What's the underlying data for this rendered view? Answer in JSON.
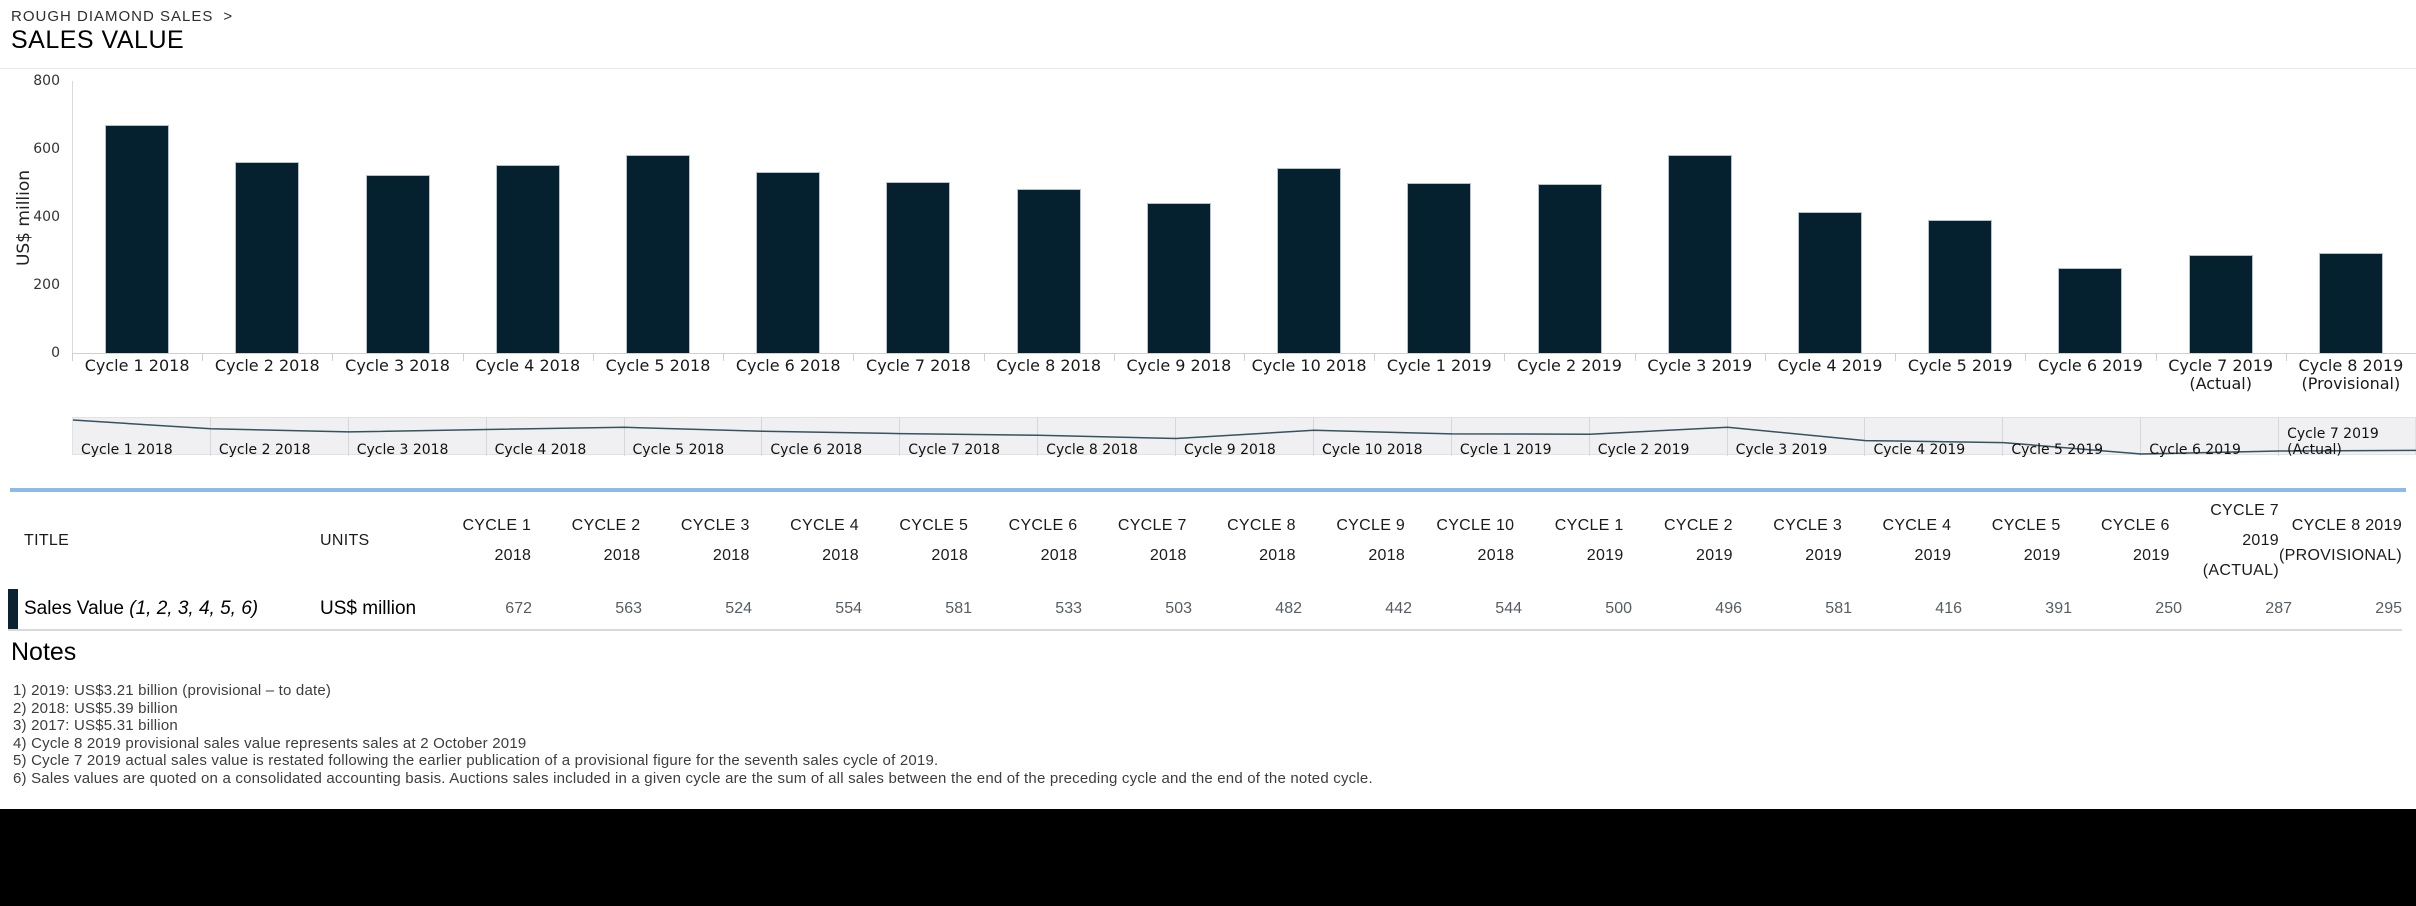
{
  "breadcrumb": {
    "path": "ROUGH DIAMOND SALES",
    "separator": ">"
  },
  "page_title": "SALES VALUE",
  "chart_data": {
    "type": "bar",
    "title": "",
    "xlabel": "",
    "ylabel": "US$ million",
    "ylim": [
      0,
      800
    ],
    "yticks": [
      0,
      200,
      400,
      600,
      800
    ],
    "grid": false,
    "legend": false,
    "bar_color": "#05202e",
    "categories": [
      "Cycle 1 2018",
      "Cycle 2 2018",
      "Cycle 3 2018",
      "Cycle 4 2018",
      "Cycle 5 2018",
      "Cycle 6 2018",
      "Cycle 7 2018",
      "Cycle 8 2018",
      "Cycle 9 2018",
      "Cycle 10 2018",
      "Cycle 1 2019",
      "Cycle 2 2019",
      "Cycle 3 2019",
      "Cycle 4 2019",
      "Cycle 5 2019",
      "Cycle 6 2019",
      "Cycle 7 2019\n(Actual)",
      "Cycle 8 2019\n(Provisional)"
    ],
    "values": [
      672,
      563,
      524,
      554,
      581,
      533,
      503,
      482,
      442,
      544,
      500,
      496,
      581,
      416,
      391,
      250,
      287,
      295
    ]
  },
  "navigator": {
    "line_color": "#35525f",
    "labels": [
      "Cycle 1 2018",
      "Cycle 2 2018",
      "Cycle 3 2018",
      "Cycle 4 2018",
      "Cycle 5 2018",
      "Cycle 6 2018",
      "Cycle 7 2018",
      "Cycle 8 2018",
      "Cycle 9 2018",
      "Cycle 10 2018",
      "Cycle 1 2019",
      "Cycle 2 2019",
      "Cycle 3 2019",
      "Cycle 4 2019",
      "Cycle 5 2019",
      "Cycle 6 2019",
      "Cycle 7 2019\n(Actual)"
    ]
  },
  "table": {
    "accent_color": "#0b2233",
    "top_border_color": "#8cbae9",
    "col_title": "TITLE",
    "col_units": "UNITS",
    "columns": [
      "CYCLE 1\n2018",
      "CYCLE 2\n2018",
      "CYCLE 3\n2018",
      "CYCLE 4\n2018",
      "CYCLE 5\n2018",
      "CYCLE 6\n2018",
      "CYCLE 7\n2018",
      "CYCLE 8\n2018",
      "CYCLE 9\n2018",
      "CYCLE 10\n2018",
      "CYCLE 1\n2019",
      "CYCLE 2\n2019",
      "CYCLE 3\n2019",
      "CYCLE 4\n2019",
      "CYCLE 5\n2019",
      "CYCLE 6\n2019",
      "CYCLE 7\n2019\n(ACTUAL)",
      "CYCLE 8 2019\n(PROVISIONAL)"
    ],
    "rows": [
      {
        "title": "Sales Value ",
        "title_note": "(1, 2, 3, 4, 5, 6)",
        "units": "US$ million",
        "values": [
          672,
          563,
          524,
          554,
          581,
          533,
          503,
          482,
          442,
          544,
          500,
          496,
          581,
          416,
          391,
          250,
          287,
          295
        ]
      }
    ]
  },
  "notes": {
    "heading": "Notes",
    "items": [
      "1) 2019: US$3.21 billion (provisional – to date)",
      "2) 2018: US$5.39 billion",
      "3) 2017: US$5.31 billion",
      "4) Cycle 8 2019 provisional sales value represents sales at 2 October 2019",
      "5) Cycle 7 2019 actual sales value is restated following the earlier publication of a provisional figure for the seventh sales cycle of 2019.",
      "6) Sales values are quoted on a consolidated accounting basis. Auctions sales included in a given cycle are the sum of all sales between the end of the preceding cycle and the end of the noted cycle."
    ]
  }
}
